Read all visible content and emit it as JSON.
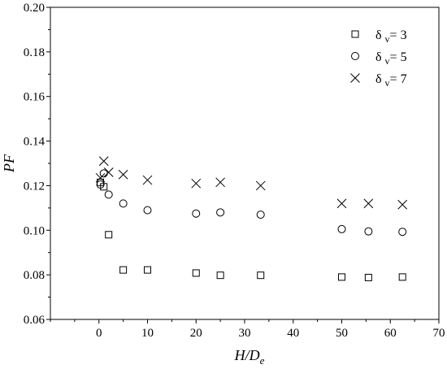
{
  "chart_data": {
    "type": "scatter",
    "title": "",
    "xlabel": {
      "main": "H/D",
      "sub": "e"
    },
    "ylabel": "PF",
    "xlim": [
      -10,
      70
    ],
    "ylim": [
      0.06,
      0.2
    ],
    "xticks": [
      0,
      10,
      20,
      30,
      40,
      50,
      60,
      70
    ],
    "yticks": [
      0.06,
      0.08,
      0.1,
      0.12,
      0.14,
      0.16,
      0.18,
      0.2
    ],
    "xtick_labels": [
      "0",
      "10",
      "20",
      "30",
      "40",
      "50",
      "60",
      "70"
    ],
    "ytick_labels": [
      "0.06",
      "0.08",
      "0.10",
      "0.12",
      "0.14",
      "0.16",
      "0.18",
      "0.20"
    ],
    "grid": false,
    "legend_position": "top-right",
    "series": [
      {
        "name": "δ v= 3",
        "name_parts": {
          "symbol": "δ",
          "sub": "v",
          "rest": "= 3"
        },
        "marker": "square",
        "points": [
          {
            "x": 0.3,
            "y": 0.1215
          },
          {
            "x": 1.0,
            "y": 0.1195
          },
          {
            "x": 2.0,
            "y": 0.098
          },
          {
            "x": 5.0,
            "y": 0.0822
          },
          {
            "x": 10.0,
            "y": 0.0822
          },
          {
            "x": 20.0,
            "y": 0.0808
          },
          {
            "x": 25.0,
            "y": 0.0798
          },
          {
            "x": 33.3,
            "y": 0.0798
          },
          {
            "x": 50.0,
            "y": 0.079
          },
          {
            "x": 55.5,
            "y": 0.0788
          },
          {
            "x": 62.5,
            "y": 0.079
          }
        ]
      },
      {
        "name": "δ v= 5",
        "name_parts": {
          "symbol": "δ",
          "sub": "v",
          "rest": "= 5"
        },
        "marker": "circle",
        "points": [
          {
            "x": 0.3,
            "y": 0.1205
          },
          {
            "x": 1.0,
            "y": 0.1255
          },
          {
            "x": 2.0,
            "y": 0.116
          },
          {
            "x": 5.0,
            "y": 0.112
          },
          {
            "x": 10.0,
            "y": 0.109
          },
          {
            "x": 20.0,
            "y": 0.1075
          },
          {
            "x": 25.0,
            "y": 0.108
          },
          {
            "x": 33.3,
            "y": 0.107
          },
          {
            "x": 50.0,
            "y": 0.1005
          },
          {
            "x": 55.5,
            "y": 0.0995
          },
          {
            "x": 62.5,
            "y": 0.0993
          }
        ]
      },
      {
        "name": "δ v= 7",
        "name_parts": {
          "symbol": "δ",
          "sub": "v",
          "rest": "= 7"
        },
        "marker": "x",
        "points": [
          {
            "x": 0.3,
            "y": 0.1235
          },
          {
            "x": 1.0,
            "y": 0.131
          },
          {
            "x": 2.0,
            "y": 0.126
          },
          {
            "x": 5.0,
            "y": 0.125
          },
          {
            "x": 10.0,
            "y": 0.1225
          },
          {
            "x": 20.0,
            "y": 0.121
          },
          {
            "x": 25.0,
            "y": 0.1215
          },
          {
            "x": 33.3,
            "y": 0.12
          },
          {
            "x": 50.0,
            "y": 0.112
          },
          {
            "x": 55.5,
            "y": 0.112
          },
          {
            "x": 62.5,
            "y": 0.1115
          }
        ]
      }
    ]
  }
}
